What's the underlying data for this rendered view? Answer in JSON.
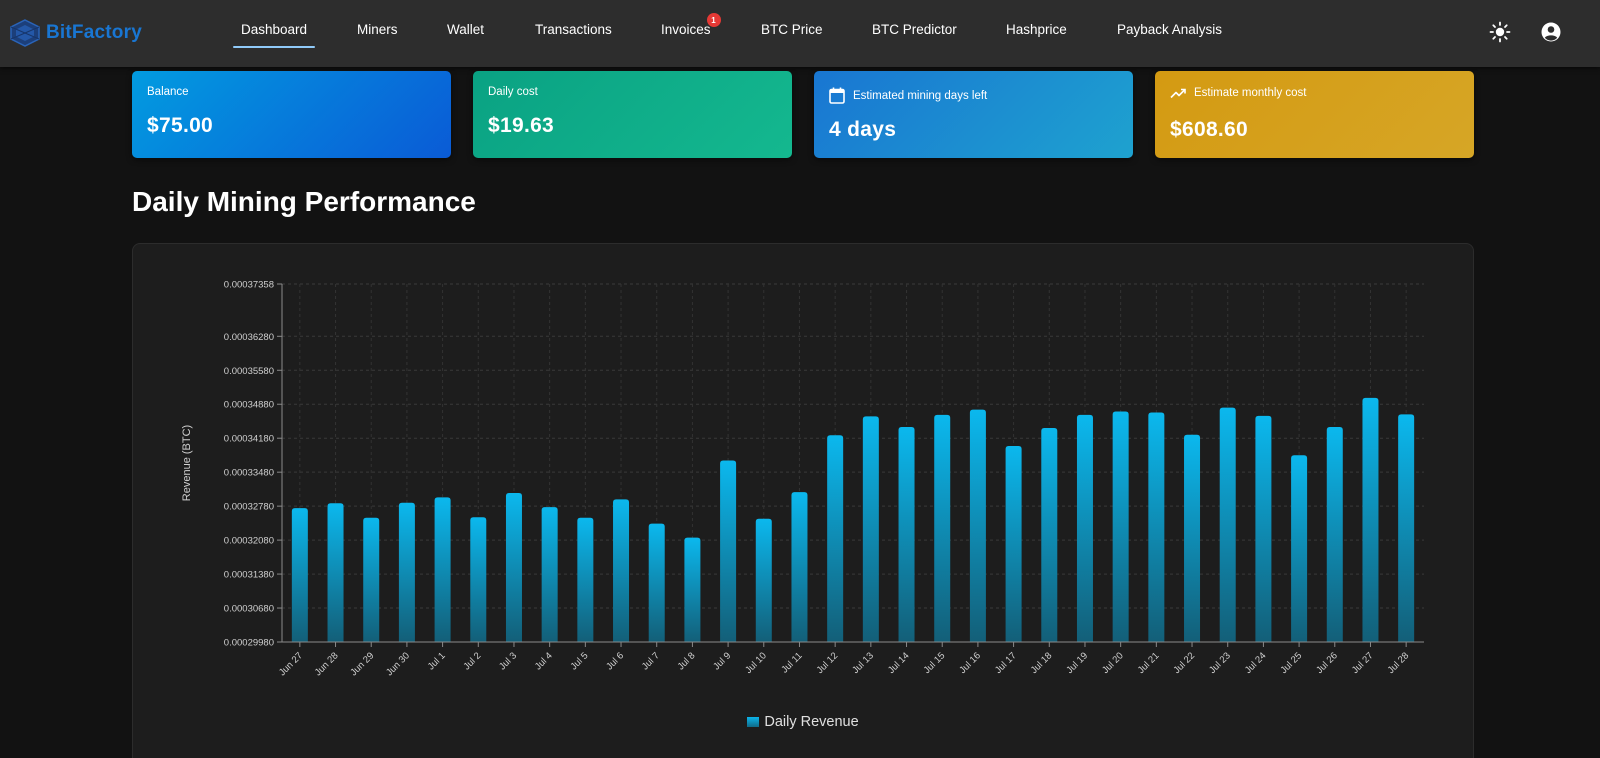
{
  "app": {
    "logo_text": "BitFactory"
  },
  "nav": {
    "items": [
      {
        "label": "Dashboard",
        "active": true
      },
      {
        "label": "Miners"
      },
      {
        "label": "Wallet"
      },
      {
        "label": "Transactions"
      },
      {
        "label": "Invoices",
        "badge": "1"
      },
      {
        "label": "BTC Price"
      },
      {
        "label": "BTC Predictor"
      },
      {
        "label": "Hashprice"
      },
      {
        "label": "Payback Analysis"
      }
    ],
    "icons": [
      "sun-icon",
      "account-circle-icon"
    ]
  },
  "cards": [
    {
      "title": "Balance",
      "value": "$75.00"
    },
    {
      "title": "Daily cost",
      "value": "$19.63"
    },
    {
      "title": "Estimated mining days left",
      "value": "4 days",
      "icon": "calendar-icon"
    },
    {
      "title": "Estimate monthly cost",
      "value": "$608.60",
      "icon": "trending-up-icon"
    }
  ],
  "section": {
    "title": "Daily Mining Performance"
  },
  "colors": {
    "bar_top": "#0bb8ee",
    "bar_bottom": "#135f78",
    "accent": "#1976d2"
  },
  "chart_data": {
    "type": "bar",
    "ylabel": "Revenue (BTC)",
    "xlabel": "",
    "ylim": [
      0.0002998,
      0.00037358
    ],
    "yticks": [
      "0.00037358",
      "0.00036280",
      "0.00035580",
      "0.00034880",
      "0.00034180",
      "0.00033480",
      "0.00032780",
      "0.00032080",
      "0.00031380",
      "0.00030680",
      "0.00029980"
    ],
    "grid": true,
    "legend_position": "bottom-center",
    "categories": [
      "Jun 27",
      "Jun 28",
      "Jun 29",
      "Jun 30",
      "Jul 1",
      "Jul 2",
      "Jul 3",
      "Jul 4",
      "Jul 5",
      "Jul 6",
      "Jul 7",
      "Jul 8",
      "Jul 9",
      "Jul 10",
      "Jul 11",
      "Jul 12",
      "Jul 13",
      "Jul 14",
      "Jul 15",
      "Jul 16",
      "Jul 17",
      "Jul 18",
      "Jul 19",
      "Jul 20",
      "Jul 21",
      "Jul 22",
      "Jul 23",
      "Jul 24",
      "Jul 25",
      "Jul 26",
      "Jul 27",
      "Jul 28"
    ],
    "series": [
      {
        "name": "Daily Revenue",
        "values": [
          0.0003274,
          0.0003284,
          0.0003254,
          0.0003285,
          0.0003296,
          0.0003255,
          0.0003305,
          0.0003276,
          0.0003254,
          0.0003292,
          0.0003242,
          0.0003213,
          0.0003372,
          0.0003252,
          0.0003307,
          0.0003424,
          0.0003463,
          0.0003441,
          0.0003466,
          0.0003477,
          0.0003402,
          0.0003439,
          0.0003466,
          0.0003473,
          0.0003471,
          0.0003425,
          0.0003481,
          0.0003464,
          0.0003383,
          0.0003441,
          0.0003501,
          0.0003467
        ]
      }
    ]
  }
}
